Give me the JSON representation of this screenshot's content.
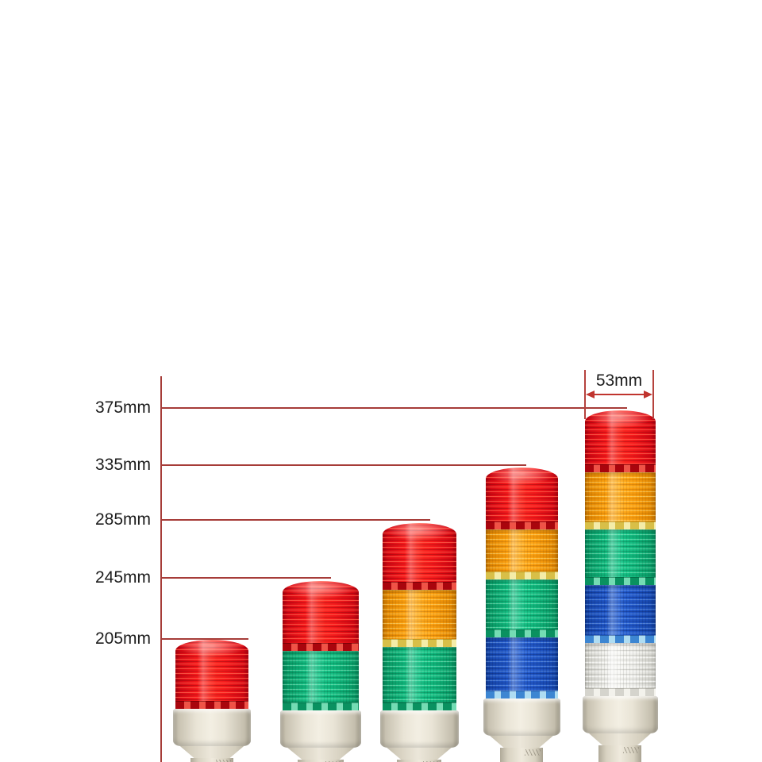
{
  "page": {
    "background": "#ffffff",
    "description": "Signal tower light height comparison diagram with five LED stack lights"
  },
  "dimensions": {
    "unit": "mm",
    "items": [
      {
        "label": "375mm",
        "value_mm": 375
      },
      {
        "label": "335mm",
        "value_mm": 335
      },
      {
        "label": "285mm",
        "value_mm": 285
      },
      {
        "label": "245mm",
        "value_mm": 245
      },
      {
        "label": "205mm",
        "value_mm": 205
      }
    ],
    "width": {
      "label": "53mm",
      "value_mm": 53
    }
  },
  "towers": [
    {
      "name": "tower-205mm",
      "height_label": "205mm",
      "height_mm": 205,
      "layers": [
        "red"
      ]
    },
    {
      "name": "tower-245mm",
      "height_label": "245mm",
      "height_mm": 245,
      "layers": [
        "red",
        "green"
      ]
    },
    {
      "name": "tower-285mm",
      "height_label": "285mm",
      "height_mm": 285,
      "layers": [
        "red",
        "orange",
        "green"
      ]
    },
    {
      "name": "tower-335mm",
      "height_label": "335mm",
      "height_mm": 335,
      "layers": [
        "red",
        "orange",
        "green",
        "blue"
      ]
    },
    {
      "name": "tower-375mm",
      "height_label": "375mm",
      "height_mm": 375,
      "layers": [
        "red",
        "orange",
        "green",
        "blue",
        "white"
      ]
    }
  ],
  "colors": {
    "red": "#ee0f17",
    "orange": "#f89a0b",
    "green": "#10b57b",
    "blue": "#1e56c6",
    "white": "#ebebe9",
    "base_beige": "#e6e1d2",
    "dimension_line": "#a63c38",
    "width_arrow": "#c0342e",
    "label_text": "#1d1d1d"
  }
}
